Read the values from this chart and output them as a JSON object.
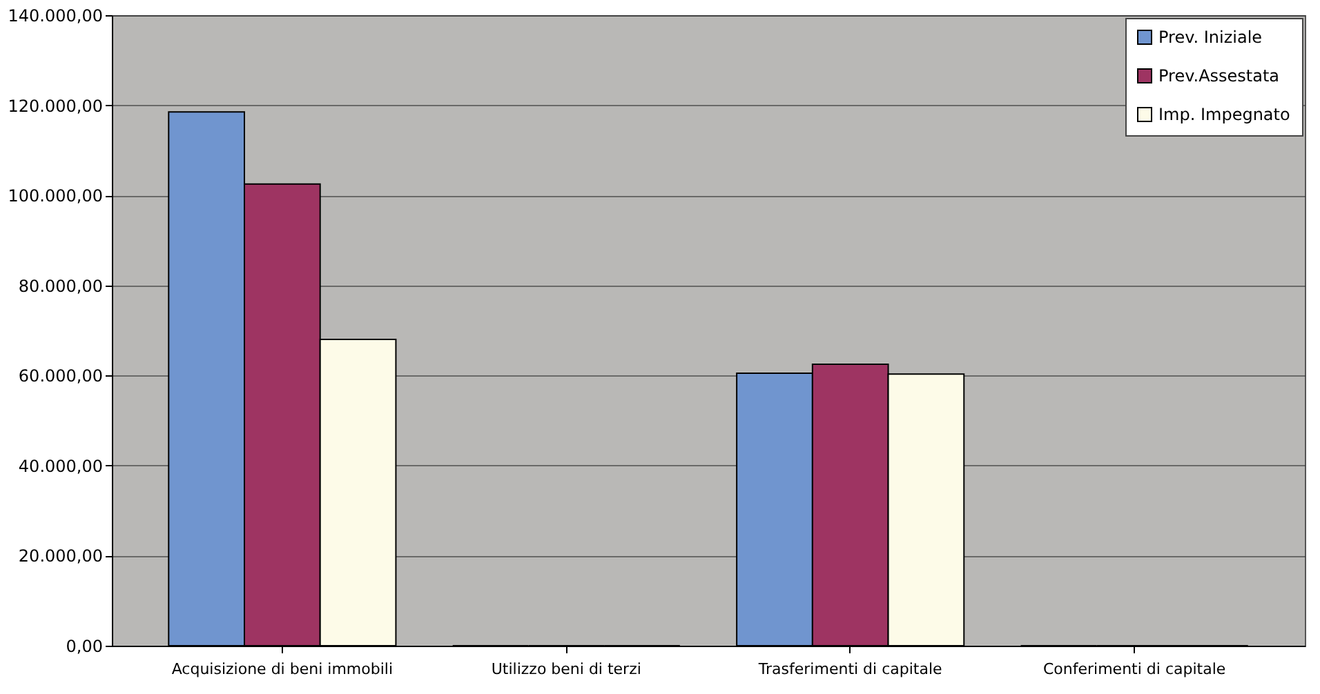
{
  "chart_data": {
    "type": "bar",
    "categories": [
      "Acquisizione di beni immobili",
      "Utilizzo beni di terzi",
      "Trasferimenti di capitale",
      "Conferimenti di capitale"
    ],
    "series": [
      {
        "name": "Prev. Iniziale",
        "color": "#7095cf",
        "values": [
          118500,
          0,
          60500,
          0
        ]
      },
      {
        "name": "Prev.Assestata",
        "color": "#9e3462",
        "values": [
          102500,
          0,
          62500,
          0
        ]
      },
      {
        "name": "Imp. Impegnato",
        "color": "#fdfbe8",
        "values": [
          68000,
          0,
          60300,
          0
        ]
      }
    ],
    "ylim": [
      0,
      140000
    ],
    "yticks": [
      {
        "value": 0,
        "label": "0,00"
      },
      {
        "value": 20000,
        "label": "20.000,00"
      },
      {
        "value": 40000,
        "label": "40.000,00"
      },
      {
        "value": 60000,
        "label": "60.000,00"
      },
      {
        "value": 80000,
        "label": "80.000,00"
      },
      {
        "value": 100000,
        "label": "100.000,00"
      },
      {
        "value": 120000,
        "label": "120.000,00"
      },
      {
        "value": 140000,
        "label": "140.000,00"
      }
    ],
    "grid": "y",
    "legend": "top right"
  }
}
